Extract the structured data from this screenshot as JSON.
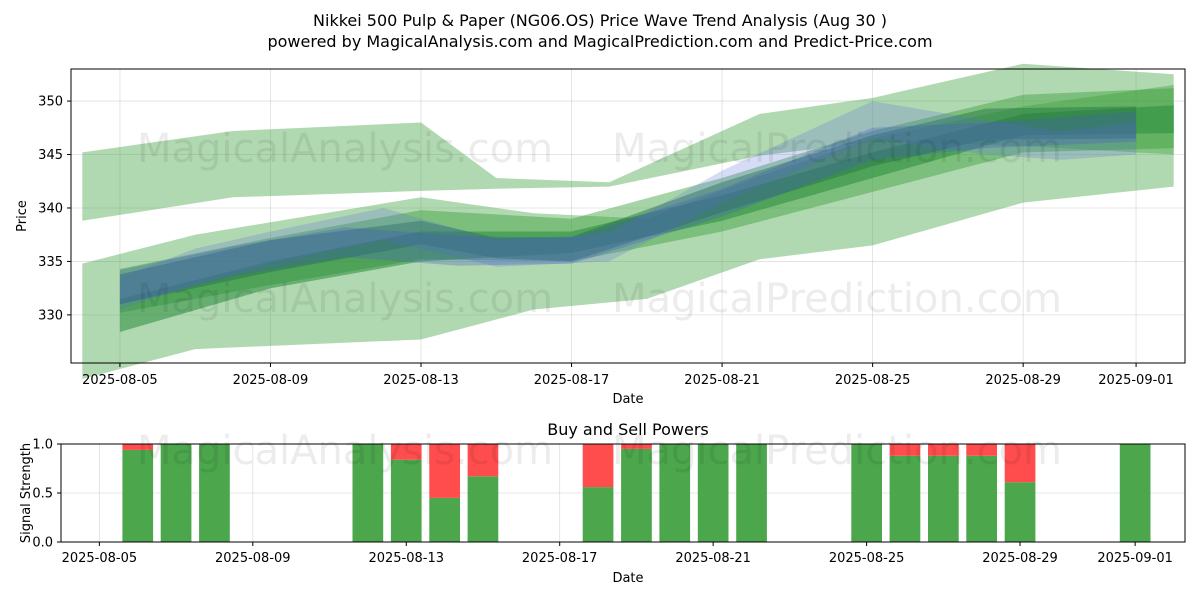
{
  "title_line1": "Nikkei 500 Pulp & Paper (NG06.OS) Price Wave Trend Analysis (Aug 30 )",
  "title_line2": "powered by MagicalAnalysis.com and MagicalPrediction.com and Predict-Price.com",
  "watermarks": [
    "MagicalAnalysis.com",
    "MagicalPrediction.com"
  ],
  "chart_data": [
    {
      "type": "area",
      "xlabel": "Date",
      "ylabel": "Price",
      "ylim": [
        325.5,
        353
      ],
      "xlim": [
        "2025-08-04",
        "2025-09-02"
      ],
      "grid": true,
      "x_ticks": [
        "2025-08-05",
        "2025-08-09",
        "2025-08-13",
        "2025-08-17",
        "2025-08-21",
        "2025-08-25",
        "2025-08-29",
        "2025-09-01"
      ],
      "y_ticks": [
        330,
        335,
        340,
        345,
        350
      ],
      "green_bands": [
        {
          "x": [
            "2025-08-04",
            "2025-08-08",
            "2025-08-13",
            "2025-08-15",
            "2025-08-18",
            "2025-08-22",
            "2025-08-25",
            "2025-08-29",
            "2025-09-02"
          ],
          "upper": [
            345.2,
            347.2,
            348.0,
            342.8,
            342.4,
            348.8,
            350.3,
            353.5,
            352.5
          ],
          "lower": [
            338.8,
            341.0,
            341.6,
            341.8,
            342.0,
            344.9,
            346.2,
            345.8,
            345.0
          ]
        },
        {
          "x": [
            "2025-08-04",
            "2025-08-07",
            "2025-08-13",
            "2025-08-16",
            "2025-08-19",
            "2025-08-22",
            "2025-08-25",
            "2025-08-29",
            "2025-09-02"
          ],
          "upper": [
            334.8,
            337.5,
            341.0,
            339.5,
            339.0,
            343.0,
            346.5,
            349.5,
            351.5
          ],
          "lower": [
            324.0,
            326.8,
            327.7,
            330.5,
            331.5,
            335.2,
            336.5,
            340.5,
            342.0
          ]
        },
        {
          "x": [
            "2025-08-05",
            "2025-08-09",
            "2025-08-13",
            "2025-08-17",
            "2025-08-21",
            "2025-08-25",
            "2025-08-29",
            "2025-09-02"
          ],
          "upper": [
            334.3,
            337.2,
            339.8,
            339.0,
            342.8,
            347.2,
            350.6,
            351.2
          ],
          "lower": [
            330.2,
            332.8,
            335.2,
            335.0,
            337.8,
            341.5,
            345.2,
            345.6
          ]
        },
        {
          "x": [
            "2025-08-05",
            "2025-08-09",
            "2025-08-13",
            "2025-08-17",
            "2025-08-21",
            "2025-08-25",
            "2025-08-29",
            "2025-09-02"
          ],
          "upper": [
            331.5,
            335.0,
            337.8,
            337.8,
            341.2,
            345.2,
            348.8,
            349.6
          ],
          "lower": [
            328.4,
            332.5,
            335.0,
            335.8,
            338.8,
            342.8,
            346.8,
            347.0
          ]
        },
        {
          "x": [
            "2025-08-05",
            "2025-08-09",
            "2025-08-13",
            "2025-08-15",
            "2025-08-17",
            "2025-08-21",
            "2025-08-25",
            "2025-08-28",
            "2025-09-01"
          ],
          "upper": [
            333.8,
            337.0,
            338.8,
            337.2,
            337.3,
            342.4,
            346.8,
            349.3,
            349.5
          ],
          "lower": [
            331.0,
            334.0,
            336.6,
            335.3,
            335.0,
            339.6,
            343.9,
            346.4,
            346.5
          ]
        }
      ],
      "blue_bands": [
        {
          "x": [
            "2025-08-05",
            "2025-08-07",
            "2025-08-09",
            "2025-08-12",
            "2025-08-15",
            "2025-08-18",
            "2025-08-21",
            "2025-08-25",
            "2025-08-28",
            "2025-08-30",
            "2025-09-01"
          ],
          "upper": [
            333.5,
            336.2,
            337.8,
            340.0,
            337.0,
            337.6,
            343.5,
            350.0,
            348.2,
            347.2,
            348.0
          ],
          "lower": [
            330.5,
            332.8,
            334.8,
            337.0,
            334.5,
            335.0,
            340.5,
            346.5,
            345.0,
            344.5,
            345.0
          ]
        },
        {
          "x": [
            "2025-08-05",
            "2025-08-08",
            "2025-08-11",
            "2025-08-14",
            "2025-08-17",
            "2025-08-21",
            "2025-08-25",
            "2025-08-28",
            "2025-09-01"
          ],
          "upper": [
            334.2,
            336.4,
            338.2,
            337.4,
            337.2,
            341.8,
            347.5,
            348.0,
            349.0
          ],
          "lower": [
            331.0,
            333.6,
            335.4,
            334.6,
            334.8,
            339.2,
            344.5,
            345.6,
            346.2
          ]
        }
      ]
    },
    {
      "type": "bar",
      "title": "Buy and Sell Powers",
      "xlabel": "Date",
      "ylabel": "Signal Strength",
      "ylim": [
        0,
        1
      ],
      "xlim": [
        "2025-08-04.3",
        "2025-09-02"
      ],
      "grid": true,
      "x_ticks": [
        "2025-08-05",
        "2025-08-09",
        "2025-08-13",
        "2025-08-17",
        "2025-08-21",
        "2025-08-25",
        "2025-08-29",
        "2025-09-01"
      ],
      "y_ticks": [
        "0.0",
        "0.5",
        "1.0"
      ],
      "colors": {
        "buy": "#4ca64c",
        "sell": "#ff4d4d"
      },
      "dates": [
        "2025-08-06",
        "2025-08-07",
        "2025-08-08",
        "2025-08-12",
        "2025-08-13",
        "2025-08-14",
        "2025-08-15",
        "2025-08-18",
        "2025-08-19",
        "2025-08-20",
        "2025-08-21",
        "2025-08-22",
        "2025-08-25",
        "2025-08-26",
        "2025-08-27",
        "2025-08-28",
        "2025-08-29",
        "2025-09-01"
      ],
      "buy": [
        0.94,
        1.0,
        1.0,
        1.0,
        0.84,
        0.45,
        0.67,
        0.56,
        0.95,
        1.0,
        1.0,
        1.0,
        1.0,
        0.88,
        0.88,
        0.88,
        0.61,
        1.0
      ],
      "sell": [
        0.06,
        0.0,
        0.0,
        0.0,
        0.16,
        0.55,
        0.33,
        0.44,
        0.05,
        0.0,
        0.0,
        0.0,
        0.0,
        0.12,
        0.12,
        0.12,
        0.39,
        0.0
      ]
    }
  ]
}
